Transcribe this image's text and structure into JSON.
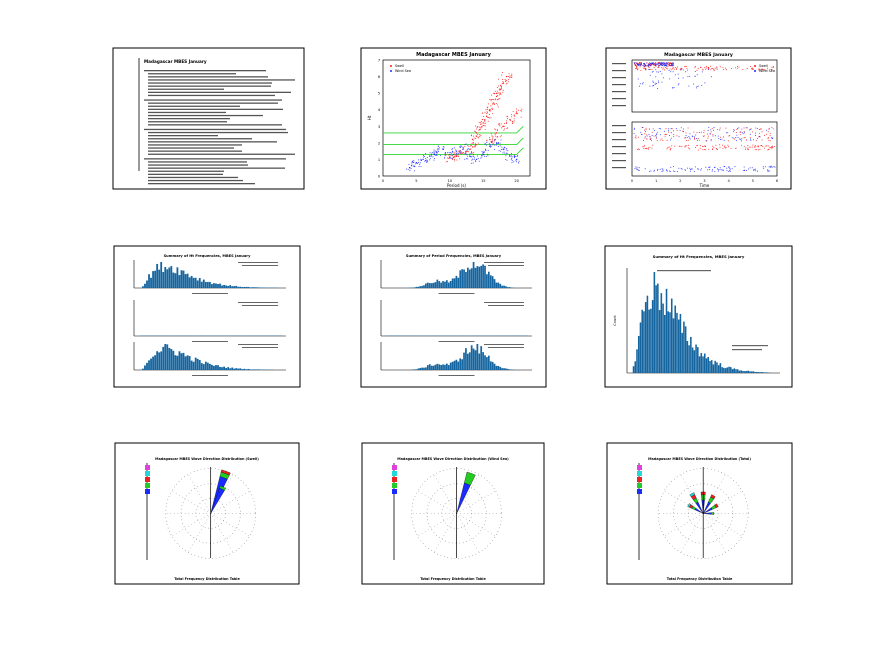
{
  "page": {
    "background": "#ffffff",
    "panel_border": "#000000"
  },
  "colors": {
    "red_series": "#ff1a1a",
    "blue_series": "#1f2fff",
    "threshold_lines": "#2fd62f",
    "hist_bars": "#1565a0",
    "rose_blue": "#1a2bff",
    "rose_green": "#22cc22",
    "rose_red": "#ee2222",
    "rose_cyan": "#22d8d8",
    "rose_magenta": "#e040e0"
  },
  "panels": [
    {
      "kind": "text",
      "title": "Madagascar MBES January",
      "text_lines": 36
    },
    {
      "kind": "scatter",
      "title": "Madagascar MBES January",
      "xlabel": "Period (s)",
      "ylabel": "Ht",
      "xticks": [
        "0",
        "5",
        "10",
        "15",
        "20"
      ],
      "yticks": [
        "0",
        "1",
        "2",
        "3",
        "4",
        "5",
        "6",
        "7"
      ],
      "legend": [
        "Swell",
        "Wind Sea"
      ],
      "chart_data": {
        "type": "scatter",
        "xlim": [
          0,
          22
        ],
        "ylim": [
          0,
          7
        ],
        "series": [
          {
            "color": "red_series",
            "points": [
              [
                13.5,
                2.0
              ],
              [
                14,
                2.4
              ],
              [
                14.5,
                2.8
              ],
              [
                15,
                3.2
              ],
              [
                15.5,
                3.6
              ],
              [
                16,
                4.0
              ],
              [
                16.5,
                4.4
              ],
              [
                17,
                4.8
              ],
              [
                17.5,
                5.2
              ],
              [
                18,
                5.6
              ],
              [
                18.5,
                6.0
              ],
              [
                13,
                1.6
              ],
              [
                12,
                1.4
              ],
              [
                11,
                1.2
              ],
              [
                10,
                1.1
              ],
              [
                16,
                2.2
              ],
              [
                17,
                2.6
              ],
              [
                18,
                3.0
              ],
              [
                19,
                3.4
              ],
              [
                20,
                3.8
              ]
            ]
          },
          {
            "color": "blue_series",
            "points": [
              [
                4,
                0.5
              ],
              [
                5,
                0.8
              ],
              [
                6,
                1.0
              ],
              [
                7,
                1.2
              ],
              [
                8,
                1.4
              ],
              [
                9,
                1.6
              ],
              [
                10,
                1.3
              ],
              [
                11,
                1.5
              ],
              [
                12,
                1.7
              ],
              [
                13,
                1.2
              ],
              [
                14,
                1.0
              ],
              [
                15,
                1.4
              ],
              [
                16,
                1.8
              ],
              [
                17,
                2.0
              ],
              [
                18,
                1.6
              ],
              [
                19,
                1.2
              ],
              [
                20,
                1.0
              ]
            ]
          }
        ],
        "thresholds": [
          [
            0,
            2.6,
            20,
            2.6,
            21,
            3.0
          ],
          [
            0,
            1.9,
            20,
            1.9,
            21,
            2.3
          ],
          [
            0,
            1.3,
            20,
            1.3,
            21,
            1.7
          ]
        ]
      }
    },
    {
      "kind": "scatter_dual",
      "title": "Madagascar MBES January",
      "xlabel": "Time",
      "legend": [
        "Swell",
        "Wind Sea"
      ],
      "xticks": [
        "0",
        "1",
        "2",
        "3",
        "4",
        "5",
        "6"
      ]
    },
    {
      "kind": "hist_triple",
      "title": "Summary of Ht Frequencies, MBES January",
      "chart_data": {
        "type": "bar",
        "profile": "right_skewed",
        "rows": 3
      }
    },
    {
      "kind": "hist_triple",
      "title": "Summary of Period Frequencies, MBES January",
      "chart_data": {
        "type": "bar",
        "profile": "bell_right",
        "rows": 3
      }
    },
    {
      "kind": "hist_single",
      "title": "Summary of Ht Frequencies, MBES January",
      "ylabel": "Count",
      "chart_data": {
        "type": "bar",
        "profile": "right_skewed"
      }
    },
    {
      "kind": "rose",
      "title": "Madagascar MBES Wave Direction Distribution (Swell)",
      "footer": "Total Frequency Distribution Table",
      "legend": [
        "",
        "",
        "",
        "",
        ""
      ],
      "chart_data": {
        "type": "rose",
        "sectors": [
          {
            "dir_deg": 20,
            "stack": [
              0.85,
              0.1,
              0.05
            ]
          },
          {
            "dir_deg": 25,
            "stack": [
              0.6,
              0.05
            ]
          }
        ]
      }
    },
    {
      "kind": "rose",
      "title": "Madagascar MBES Wave Direction Distribution (Wind Sea)",
      "footer": "Total Frequency Distribution Table",
      "legend": [
        "",
        "",
        "",
        "",
        ""
      ],
      "chart_data": {
        "type": "rose",
        "sectors": [
          {
            "dir_deg": 20,
            "stack": [
              0.7,
              0.25
            ]
          }
        ]
      }
    },
    {
      "kind": "rose",
      "title": "Madagascar MBES Wave Direction Distribution (Total)",
      "footer": "Total Frequency Distribution Table",
      "legend": [
        "",
        "",
        "",
        "",
        ""
      ],
      "chart_data": {
        "type": "rose",
        "sectors": [
          {
            "dir_deg": 0,
            "stack": [
              0.3,
              0.12,
              0.06
            ]
          },
          {
            "dir_deg": 30,
            "stack": [
              0.28,
              0.12,
              0.06
            ]
          },
          {
            "dir_deg": 60,
            "stack": [
              0.22,
              0.1,
              0.05
            ]
          },
          {
            "dir_deg": 90,
            "stack": [
              0.18,
              0.06
            ]
          },
          {
            "dir_deg": 300,
            "stack": [
              0.2,
              0.08,
              0.06,
              0.04
            ]
          },
          {
            "dir_deg": 330,
            "stack": [
              0.28,
              0.1,
              0.08,
              0.05
            ]
          }
        ]
      }
    }
  ]
}
